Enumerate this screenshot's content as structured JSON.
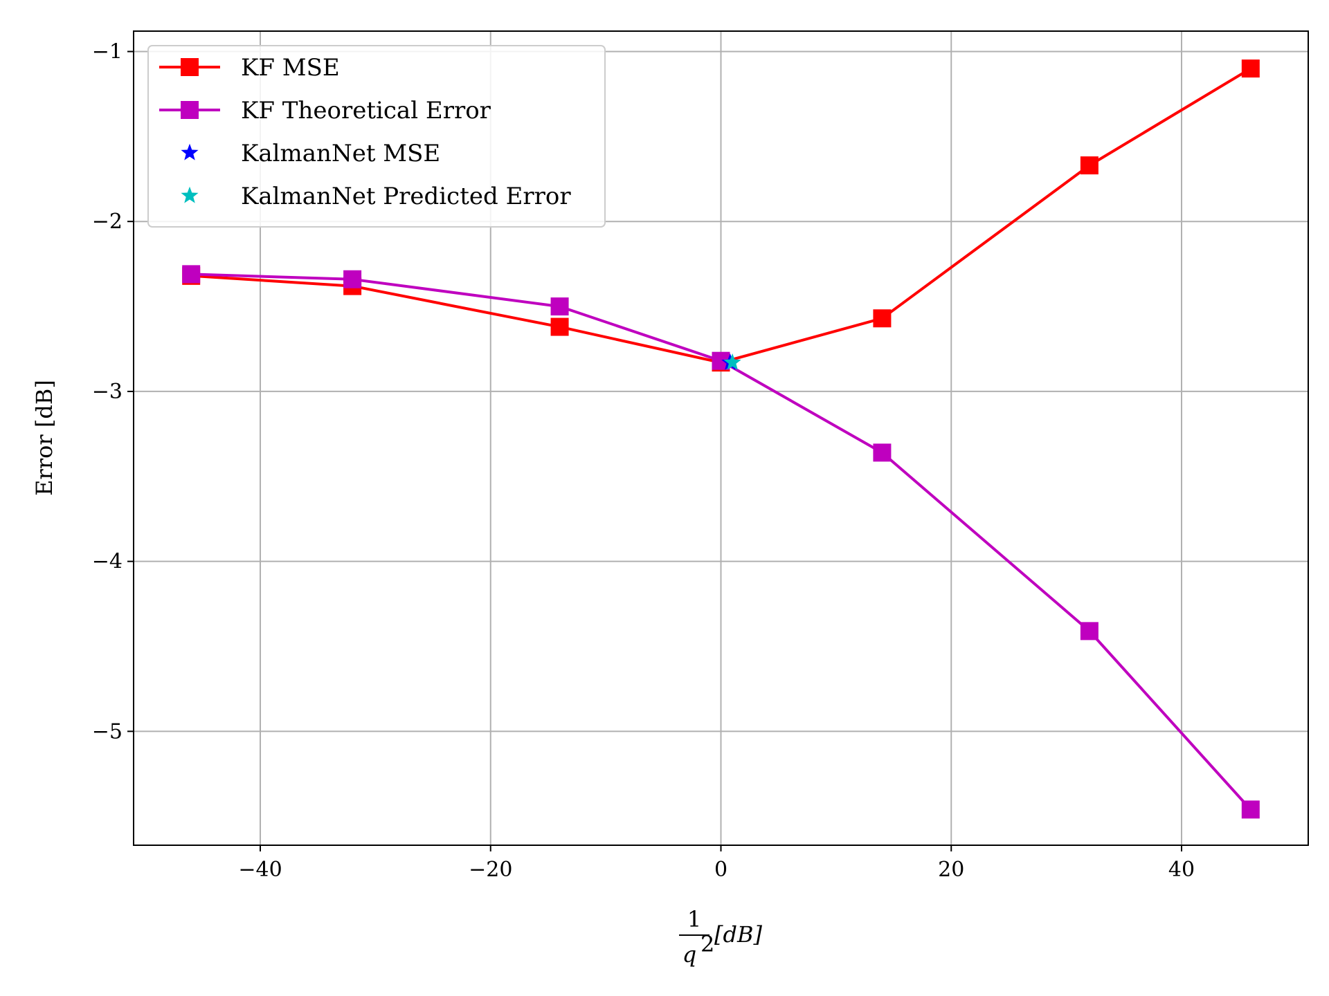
{
  "chart_data": {
    "type": "line",
    "xlabel": {
      "numerator": "1",
      "denominator": "q",
      "exponent": "2",
      "unit": "[dB]"
    },
    "ylabel": "Error [dB]",
    "xlim": [
      -51,
      51
    ],
    "ylim": [
      -5.67,
      -0.88
    ],
    "xticks": [
      -40,
      -20,
      0,
      20,
      40
    ],
    "xtick_labels": [
      "−40",
      "−20",
      "0",
      "20",
      "40"
    ],
    "yticks": [
      -1,
      -2,
      -3,
      -4,
      -5
    ],
    "ytick_labels": [
      "−1",
      "−2",
      "−3",
      "−4",
      "−5"
    ],
    "grid": true,
    "legend_position": "top-left",
    "series": [
      {
        "name": "KF MSE",
        "color": "#ff0000",
        "line": true,
        "marker": "square",
        "points": [
          [
            -46,
            -2.32
          ],
          [
            -32,
            -2.38
          ],
          [
            -14,
            -2.62
          ],
          [
            0,
            -2.83
          ],
          [
            14,
            -2.57
          ],
          [
            32,
            -1.67
          ],
          [
            46,
            -1.1
          ]
        ]
      },
      {
        "name": "KF Theoretical Error",
        "color": "#bf00bf",
        "line": true,
        "marker": "square",
        "points": [
          [
            -46,
            -2.31
          ],
          [
            -32,
            -2.34
          ],
          [
            -14,
            -2.5
          ],
          [
            0,
            -2.82
          ],
          [
            14,
            -3.36
          ],
          [
            32,
            -4.41
          ],
          [
            46,
            -5.46
          ]
        ]
      },
      {
        "name": "KalmanNet MSE",
        "color": "#0000ff",
        "line": false,
        "marker": "star",
        "points": [
          [
            0.8,
            -2.83
          ]
        ]
      },
      {
        "name": "KalmanNet Predicted Error",
        "color": "#00bfbf",
        "line": false,
        "marker": "star",
        "points": [
          [
            1.0,
            -2.83
          ]
        ]
      }
    ]
  }
}
